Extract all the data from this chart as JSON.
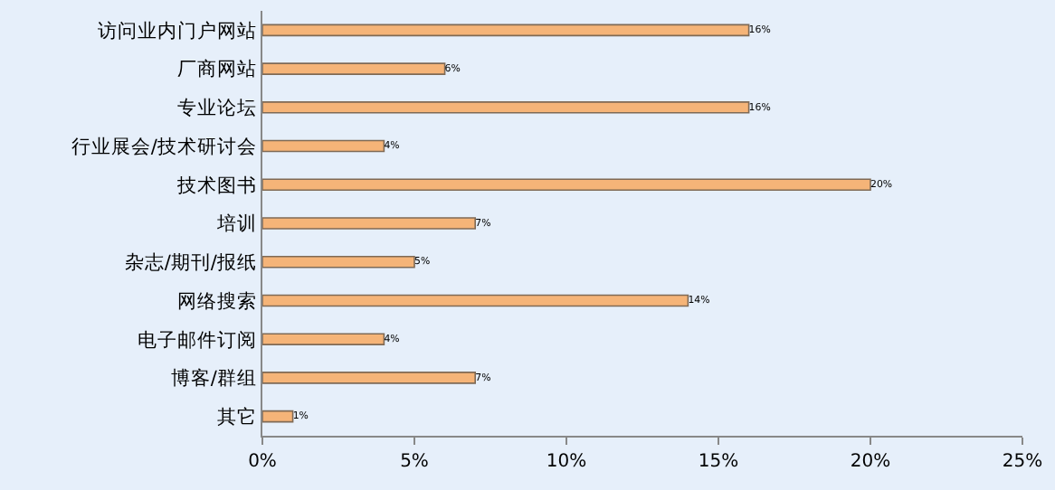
{
  "chart_data": {
    "type": "bar",
    "orientation": "horizontal",
    "categories": [
      "访问业内门户网站",
      "厂商网站",
      "专业论坛",
      "行业展会/技术研讨会",
      "技术图书",
      "培训",
      "杂志/期刊/报纸",
      "网络搜索",
      "电子邮件订阅",
      "博客/群组",
      "其它"
    ],
    "values": [
      16,
      6,
      16,
      4,
      20,
      7,
      5,
      14,
      4,
      7,
      1
    ],
    "value_labels": [
      "16%",
      "6%",
      "16%",
      "4%",
      "20%",
      "7%",
      "5%",
      "14%",
      "4%",
      "7%",
      "1%"
    ],
    "color": "#f5b478",
    "xlim": [
      0,
      25
    ],
    "xticks": [
      {
        "value": 0,
        "label": "0%"
      },
      {
        "value": 5,
        "label": "5%"
      },
      {
        "value": 10,
        "label": "10%"
      },
      {
        "value": 15,
        "label": "15%"
      },
      {
        "value": 20,
        "label": "20%"
      },
      {
        "value": 25,
        "label": "25%"
      }
    ],
    "grid": false,
    "legend": false
  }
}
